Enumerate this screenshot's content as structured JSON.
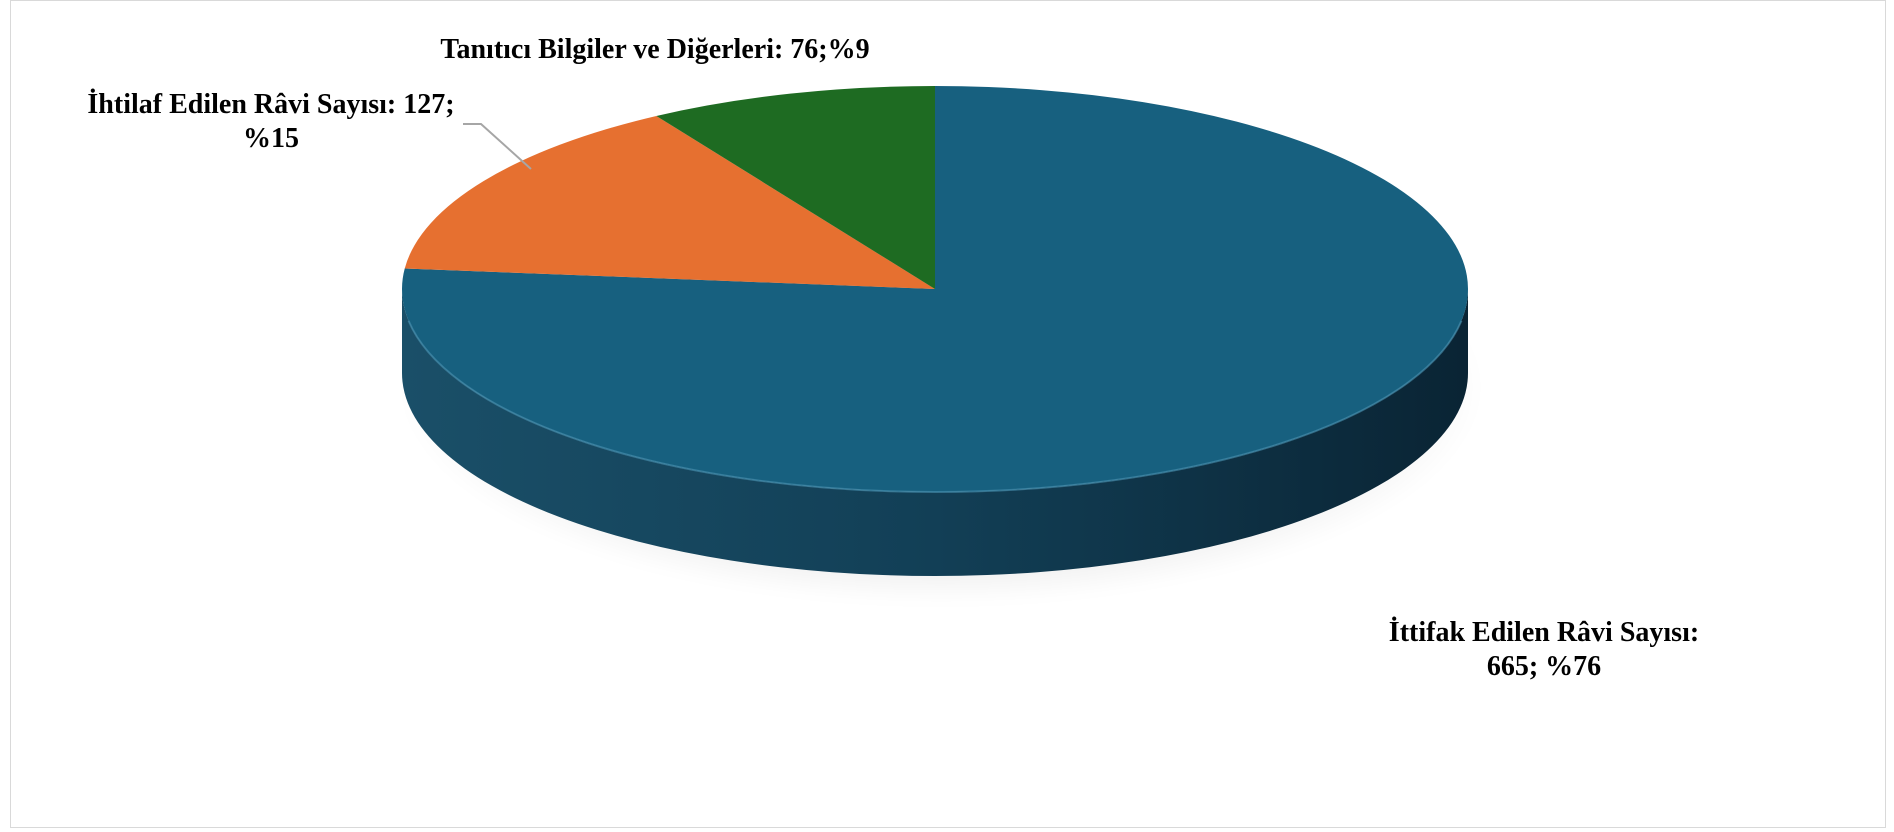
{
  "chart_data": {
    "type": "pie",
    "style": "3d",
    "title": "",
    "slices": [
      {
        "name": "İttifak Edilen Râvi Sayısı",
        "value": 665,
        "percent": 76,
        "color": "#17607f",
        "label_lines": [
          "İttifak Edilen Râvi Sayısı:",
          "665; %76"
        ]
      },
      {
        "name": "İhtilaf Edilen Râvi Sayısı",
        "value": 127,
        "percent": 15,
        "color": "#e67030",
        "label_lines": [
          "İhtilaf Edilen Râvi Sayısı: 127;",
          "%15"
        ]
      },
      {
        "name": "Tanıtıcı Bilgiler ve Diğerleri",
        "value": 76,
        "percent": 9,
        "color": "#1e6b22",
        "label_lines": [
          "Tanıtıcı Bilgiler ve Diğerleri: 76;%9"
        ]
      }
    ]
  }
}
